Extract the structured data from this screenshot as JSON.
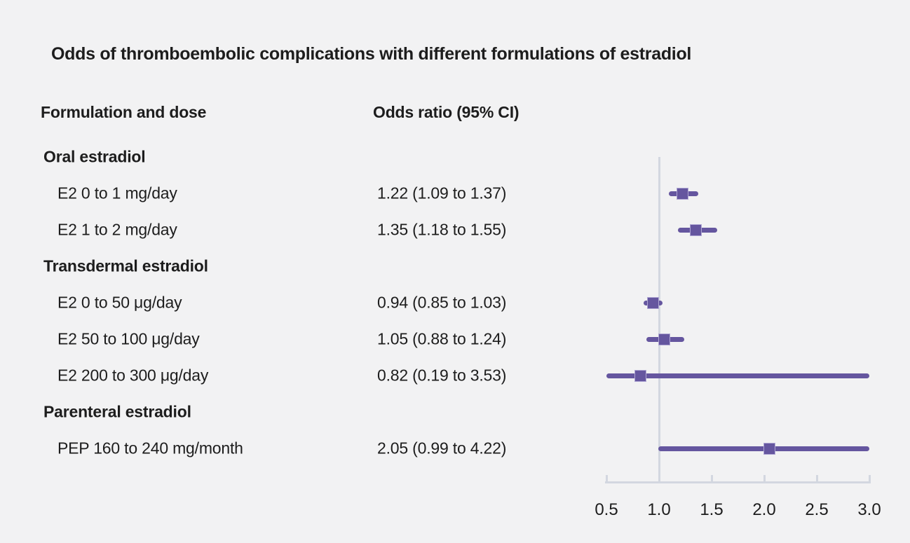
{
  "title": "Odds of thromboembolic complications with different formulations of estradiol",
  "columns": {
    "formulation": "Formulation and dose",
    "odds_ratio": "Odds ratio (95% CI)"
  },
  "chart_data": {
    "type": "forest",
    "title": "Odds of thromboembolic complications with different formulations of estradiol",
    "x_axis": {
      "xlim": [
        0.5,
        3.0
      ],
      "ticks": [
        {
          "value": 0.5,
          "label": "0.5"
        },
        {
          "value": 1.0,
          "label": "1.0"
        },
        {
          "value": 1.5,
          "label": "1.5"
        },
        {
          "value": 2.0,
          "label": "2.0"
        },
        {
          "value": 2.5,
          "label": "2.5"
        },
        {
          "value": 3.0,
          "label": "3.0"
        }
      ],
      "reference_line": 1.0
    },
    "groups": [
      {
        "label": "Oral estradiol",
        "items": [
          {
            "label": "E2 0 to 1 mg/day",
            "value_text": "1.22 (1.09 to 1.37)",
            "or": 1.22,
            "ci_low": 1.09,
            "ci_high": 1.37
          },
          {
            "label": "E2 1 to 2 mg/day",
            "value_text": "1.35 (1.18 to 1.55)",
            "or": 1.35,
            "ci_low": 1.18,
            "ci_high": 1.55
          }
        ]
      },
      {
        "label": "Transdermal estradiol",
        "items": [
          {
            "label": "E2 0 to 50 μg/day",
            "value_text": "0.94 (0.85 to 1.03)",
            "or": 0.94,
            "ci_low": 0.85,
            "ci_high": 1.03
          },
          {
            "label": "E2 50 to 100 μg/day",
            "value_text": "1.05 (0.88 to 1.24)",
            "or": 1.05,
            "ci_low": 0.88,
            "ci_high": 1.24
          },
          {
            "label": "E2 200 to 300 μg/day",
            "value_text": "0.82 (0.19 to 3.53)",
            "or": 0.82,
            "ci_low": 0.19,
            "ci_high": 3.53
          }
        ]
      },
      {
        "label": "Parenteral estradiol",
        "items": [
          {
            "label": "PEP 160 to 240 mg/month",
            "value_text": "2.05 (0.99 to 4.22)",
            "or": 2.05,
            "ci_low": 0.99,
            "ci_high": 4.22
          }
        ]
      }
    ],
    "colors": {
      "background": "#f2f2f3",
      "text": "#1d1d1d",
      "ci_line": "#65569f",
      "marker_fill": "#65569f",
      "marker_edge": "#b0a7d4",
      "reference_line": "#d3d7e0",
      "axis": "#d3d7e0"
    }
  }
}
